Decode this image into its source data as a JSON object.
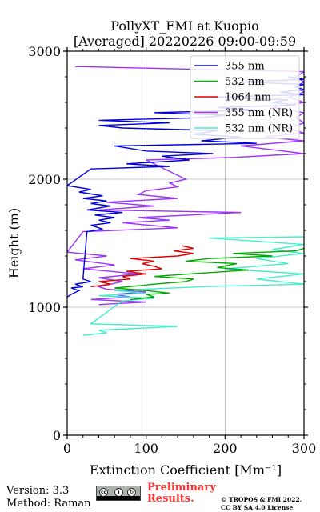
{
  "chart_data": {
    "type": "line",
    "title": "PollyXT_FMI at Kuopio",
    "subtitle": "[Averaged] 20220226 09:00-09:59",
    "xlabel": "Extinction Coefficient [Mm⁻¹]",
    "ylabel": "Height (m)",
    "xlim": [
      0,
      300
    ],
    "ylim": [
      0,
      3000
    ],
    "xticks": [
      "0",
      "100",
      "200",
      "300"
    ],
    "yticks": [
      "0",
      "1000",
      "2000",
      "3000"
    ],
    "grid": true,
    "legend_position": "top-right",
    "series": [
      {
        "name": "355 nm",
        "color": "#0000dd",
        "points": [
          [
            0,
            1080
          ],
          [
            5,
            1100
          ],
          [
            15,
            1130
          ],
          [
            5,
            1150
          ],
          [
            20,
            1160
          ],
          [
            10,
            1180
          ],
          [
            30,
            1200
          ],
          [
            20,
            1220
          ],
          [
            25,
            1590
          ],
          [
            45,
            1610
          ],
          [
            30,
            1640
          ],
          [
            55,
            1660
          ],
          [
            40,
            1680
          ],
          [
            60,
            1700
          ],
          [
            35,
            1720
          ],
          [
            70,
            1740
          ],
          [
            25,
            1760
          ],
          [
            55,
            1790
          ],
          [
            30,
            1810
          ],
          [
            50,
            1830
          ],
          [
            20,
            1850
          ],
          [
            45,
            1870
          ],
          [
            15,
            1900
          ],
          [
            30,
            1920
          ],
          [
            0,
            1950
          ],
          [
            30,
            2080
          ],
          [
            130,
            2100
          ],
          [
            75,
            2120
          ],
          [
            155,
            2150
          ],
          [
            120,
            2180
          ],
          [
            185,
            2200
          ],
          [
            100,
            2220
          ],
          [
            60,
            2260
          ],
          [
            240,
            2280
          ],
          [
            170,
            2300
          ],
          [
            220,
            2330
          ],
          [
            160,
            2350
          ],
          [
            190,
            2380
          ],
          [
            70,
            2400
          ],
          [
            40,
            2420
          ],
          [
            130,
            2440
          ],
          [
            40,
            2460
          ],
          [
            170,
            2480
          ],
          [
            200,
            2500
          ],
          [
            110,
            2520
          ],
          [
            240,
            2540
          ],
          [
            190,
            2560
          ],
          [
            290,
            2580
          ],
          [
            260,
            2600
          ],
          [
            280,
            2620
          ],
          [
            180,
            2640
          ],
          [
            300,
            2660
          ],
          [
            270,
            2680
          ],
          [
            300,
            2700
          ],
          [
            290,
            2720
          ],
          [
            300,
            2740
          ],
          [
            220,
            2760
          ],
          [
            300,
            2780
          ],
          [
            280,
            2800
          ]
        ]
      },
      {
        "name": "532 nm",
        "color": "#00aa00",
        "points": [
          [
            80,
            1060
          ],
          [
            110,
            1080
          ],
          [
            100,
            1100
          ],
          [
            130,
            1110
          ],
          [
            100,
            1130
          ],
          [
            60,
            1150
          ],
          [
            95,
            1170
          ],
          [
            110,
            1180
          ],
          [
            150,
            1200
          ],
          [
            160,
            1220
          ],
          [
            110,
            1240
          ],
          [
            155,
            1260
          ],
          [
            230,
            1290
          ],
          [
            190,
            1310
          ],
          [
            215,
            1340
          ],
          [
            150,
            1360
          ],
          [
            180,
            1380
          ],
          [
            260,
            1400
          ],
          [
            210,
            1420
          ],
          [
            290,
            1440
          ],
          [
            300,
            1460
          ]
        ]
      },
      {
        "name": "1064 nm",
        "color": "#dd0000",
        "points": [
          [
            30,
            1160
          ],
          [
            55,
            1180
          ],
          [
            40,
            1200
          ],
          [
            80,
            1220
          ],
          [
            70,
            1240
          ],
          [
            100,
            1260
          ],
          [
            75,
            1280
          ],
          [
            120,
            1300
          ],
          [
            110,
            1320
          ],
          [
            95,
            1340
          ],
          [
            110,
            1360
          ],
          [
            80,
            1380
          ],
          [
            140,
            1400
          ],
          [
            160,
            1420
          ],
          [
            135,
            1440
          ],
          [
            160,
            1460
          ],
          [
            145,
            1480
          ]
        ]
      },
      {
        "name": "355 nm (NR)",
        "color": "#9933ff",
        "points": [
          [
            40,
            1020
          ],
          [
            100,
            1040
          ],
          [
            30,
            1060
          ],
          [
            80,
            1080
          ],
          [
            60,
            1100
          ],
          [
            100,
            1120
          ],
          [
            50,
            1140
          ],
          [
            40,
            1160
          ],
          [
            70,
            1200
          ],
          [
            40,
            1230
          ],
          [
            90,
            1260
          ],
          [
            20,
            1300
          ],
          [
            60,
            1330
          ],
          [
            10,
            1370
          ],
          [
            50,
            1400
          ],
          [
            0,
            1430
          ],
          [
            20,
            1590
          ],
          [
            140,
            1620
          ],
          [
            70,
            1660
          ],
          [
            130,
            1680
          ],
          [
            90,
            1700
          ],
          [
            220,
            1740
          ],
          [
            40,
            1760
          ],
          [
            110,
            1790
          ],
          [
            50,
            1820
          ],
          [
            140,
            1850
          ],
          [
            90,
            1880
          ],
          [
            100,
            1910
          ],
          [
            140,
            1940
          ],
          [
            130,
            1970
          ],
          [
            150,
            2000
          ],
          [
            100,
            2150
          ],
          [
            210,
            2170
          ],
          [
            300,
            2200
          ],
          [
            260,
            2230
          ],
          [
            220,
            2260
          ],
          [
            300,
            2300
          ],
          [
            250,
            2330
          ],
          [
            300,
            2360
          ],
          [
            280,
            2400
          ],
          [
            300,
            2440
          ],
          [
            290,
            2480
          ],
          [
            300,
            2520
          ],
          [
            260,
            2560
          ],
          [
            300,
            2600
          ],
          [
            280,
            2640
          ],
          [
            300,
            2680
          ],
          [
            290,
            2720
          ],
          [
            300,
            2760
          ],
          [
            290,
            2800
          ],
          [
            300,
            2840
          ],
          [
            10,
            2880
          ]
        ]
      },
      {
        "name": "532 nm (NR)",
        "color": "#44eecc",
        "points": [
          [
            20,
            780
          ],
          [
            50,
            800
          ],
          [
            40,
            820
          ],
          [
            140,
            850
          ],
          [
            30,
            870
          ],
          [
            70,
            1050
          ],
          [
            110,
            1070
          ],
          [
            40,
            1090
          ],
          [
            100,
            1110
          ],
          [
            60,
            1130
          ],
          [
            170,
            1160
          ],
          [
            300,
            1180
          ],
          [
            240,
            1220
          ],
          [
            300,
            1260
          ],
          [
            200,
            1300
          ],
          [
            280,
            1340
          ],
          [
            240,
            1380
          ],
          [
            300,
            1420
          ],
          [
            260,
            1450
          ],
          [
            300,
            1490
          ],
          [
            180,
            1540
          ],
          [
            300,
            1550
          ]
        ]
      }
    ]
  },
  "footer": {
    "version": "Version: 3.3",
    "method": "Method: Raman",
    "preliminary_line1": "Preliminary",
    "preliminary_line2": "Results.",
    "copyright_line1": "© TROPOS & FMI 2022.",
    "copyright_line2": "CC BY SA 4.0 License.",
    "license_glyphs": [
      "cc",
      "i",
      "↻"
    ]
  }
}
